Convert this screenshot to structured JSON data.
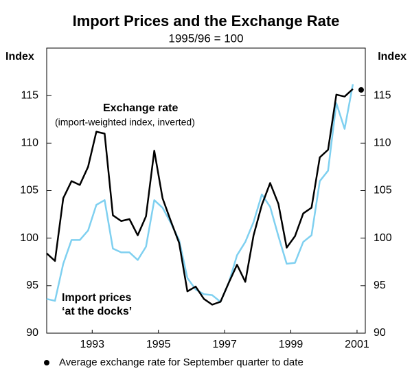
{
  "chart_data": {
    "type": "line",
    "title": "Import Prices and the Exchange Rate",
    "subtitle": "1995/96 = 100",
    "y_label_left": "Index",
    "y_label_right": "Index",
    "xlim": [
      1992.125,
      2001.75
    ],
    "xticks": [
      {
        "value": 1993.5,
        "label": "1993"
      },
      {
        "value": 1995.5,
        "label": "1995"
      },
      {
        "value": 1997.5,
        "label": "1997"
      },
      {
        "value": 1999.5,
        "label": "1999"
      },
      {
        "value": 2001.5,
        "label": "2001"
      }
    ],
    "ylim": [
      90,
      120
    ],
    "yticks": [
      90,
      95,
      100,
      105,
      110,
      115
    ],
    "y2lim": [
      90,
      120
    ],
    "y2ticks": [
      90,
      95,
      100,
      105,
      110,
      115
    ],
    "x": [
      1992.125,
      1992.375,
      1992.625,
      1992.875,
      1993.125,
      1993.375,
      1993.625,
      1993.875,
      1994.125,
      1994.375,
      1994.625,
      1994.875,
      1995.125,
      1995.375,
      1995.625,
      1995.875,
      1996.125,
      1996.375,
      1996.625,
      1996.875,
      1997.125,
      1997.375,
      1997.625,
      1997.875,
      1998.125,
      1998.375,
      1998.625,
      1998.875,
      1999.125,
      1999.375,
      1999.625,
      1999.875,
      2000.125,
      2000.375,
      2000.625,
      2000.875,
      2001.125,
      2001.375
    ],
    "series": [
      {
        "name": "Exchange rate",
        "color": "#000000",
        "values": [
          98.4,
          97.6,
          104.2,
          106.0,
          105.6,
          107.5,
          111.2,
          111.0,
          102.4,
          101.8,
          102.0,
          100.3,
          102.3,
          109.2,
          104.2,
          101.8,
          99.5,
          94.4,
          94.9,
          93.6,
          93.0,
          93.3,
          95.3,
          97.2,
          95.4,
          100.3,
          103.5,
          105.8,
          103.6,
          99.0,
          100.2,
          102.6,
          103.2,
          108.5,
          109.3,
          115.1,
          114.9,
          115.7
        ]
      },
      {
        "name": "Import prices",
        "color": "#7fd0f0",
        "values": [
          93.6,
          93.4,
          97.3,
          99.8,
          99.8,
          100.8,
          103.5,
          104.0,
          98.9,
          98.5,
          98.5,
          97.7,
          99.1,
          104.0,
          103.2,
          101.6,
          99.8,
          95.8,
          94.6,
          94.1,
          94.0,
          93.3,
          95.3,
          98.2,
          99.6,
          101.7,
          104.6,
          103.3,
          100.2,
          97.3,
          97.4,
          99.6,
          100.3,
          106.0,
          107.1,
          114.2,
          111.5,
          116.2
        ]
      }
    ],
    "annotations": [
      "Exchange rate",
      "(import-weighted index, inverted)",
      "Import prices",
      "‘at the docks’"
    ],
    "point": {
      "name": "Average exchange rate for September quarter to date",
      "x": 2001.625,
      "value": 115.6,
      "color": "#000000"
    }
  }
}
